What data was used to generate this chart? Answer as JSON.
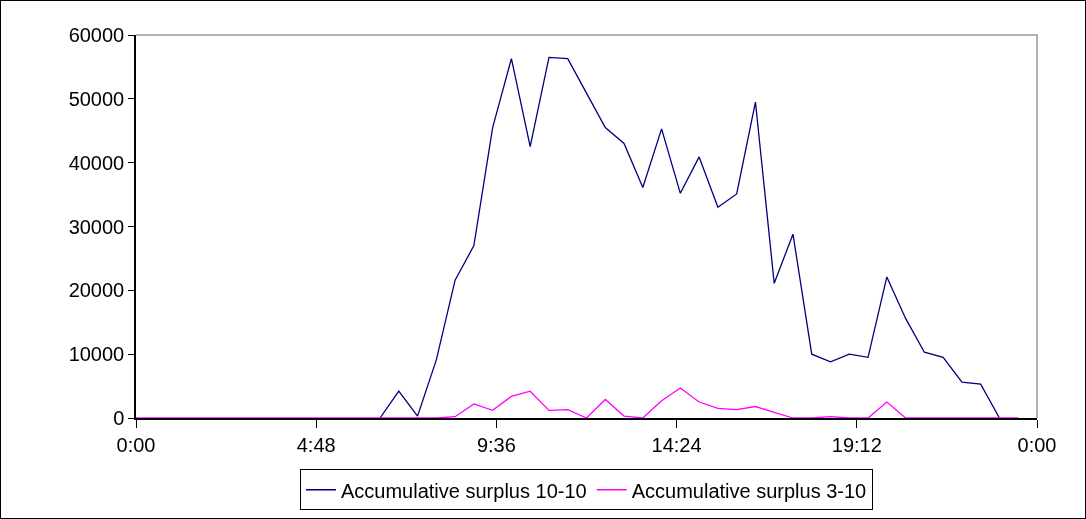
{
  "chart_data": {
    "type": "line",
    "x": [
      0,
      0.5,
      1,
      1.5,
      2,
      2.5,
      3,
      3.5,
      4,
      4.5,
      5,
      5.5,
      6,
      6.5,
      7,
      7.5,
      8,
      8.5,
      9,
      9.5,
      10,
      10.5,
      11,
      11.5,
      12,
      12.5,
      13,
      13.5,
      14,
      14.5,
      15,
      15.5,
      16,
      16.5,
      17,
      17.5,
      18,
      18.5,
      19,
      19.5,
      20,
      20.5,
      21,
      21.5,
      22,
      22.5,
      23,
      23.5
    ],
    "series": [
      {
        "name": "Accumulative surplus 10-10",
        "color": "#000080",
        "values": [
          null,
          null,
          null,
          null,
          null,
          null,
          null,
          null,
          null,
          null,
          null,
          null,
          null,
          0,
          4200,
          300,
          9100,
          21600,
          27000,
          45500,
          56300,
          42500,
          56500,
          56300,
          50900,
          45500,
          43000,
          36100,
          45300,
          35200,
          40900,
          33000,
          35100,
          49500,
          21100,
          28800,
          10000,
          8800,
          10000,
          9500,
          22100,
          15600,
          10300,
          9500,
          5600,
          5300,
          0,
          null
        ]
      },
      {
        "name": "Accumulative surplus 3-10",
        "color": "#ff00ff",
        "values": [
          0,
          0,
          0,
          0,
          0,
          0,
          0,
          0,
          0,
          0,
          0,
          0,
          0,
          0,
          0,
          0,
          0,
          200,
          2200,
          1200,
          3400,
          4200,
          1200,
          1300,
          0,
          2900,
          300,
          0,
          2700,
          4700,
          2500,
          1500,
          1300,
          1800,
          900,
          0,
          0,
          200,
          0,
          0,
          2500,
          0,
          0,
          0,
          0,
          0,
          0,
          0
        ]
      }
    ],
    "xlim": [
      0,
      24
    ],
    "xticks": [
      {
        "value": 0,
        "label": "0:00"
      },
      {
        "value": 4.8,
        "label": "4:48"
      },
      {
        "value": 9.6,
        "label": "9:36"
      },
      {
        "value": 14.4,
        "label": "14:24"
      },
      {
        "value": 19.2,
        "label": "19:12"
      },
      {
        "value": 24,
        "label": "0:00"
      }
    ],
    "ylim": [
      0,
      60000
    ],
    "yticks": [
      0,
      10000,
      20000,
      30000,
      40000,
      50000,
      60000
    ],
    "grid": false,
    "legend": "bottom",
    "marker": "none",
    "line_style": "solid"
  }
}
